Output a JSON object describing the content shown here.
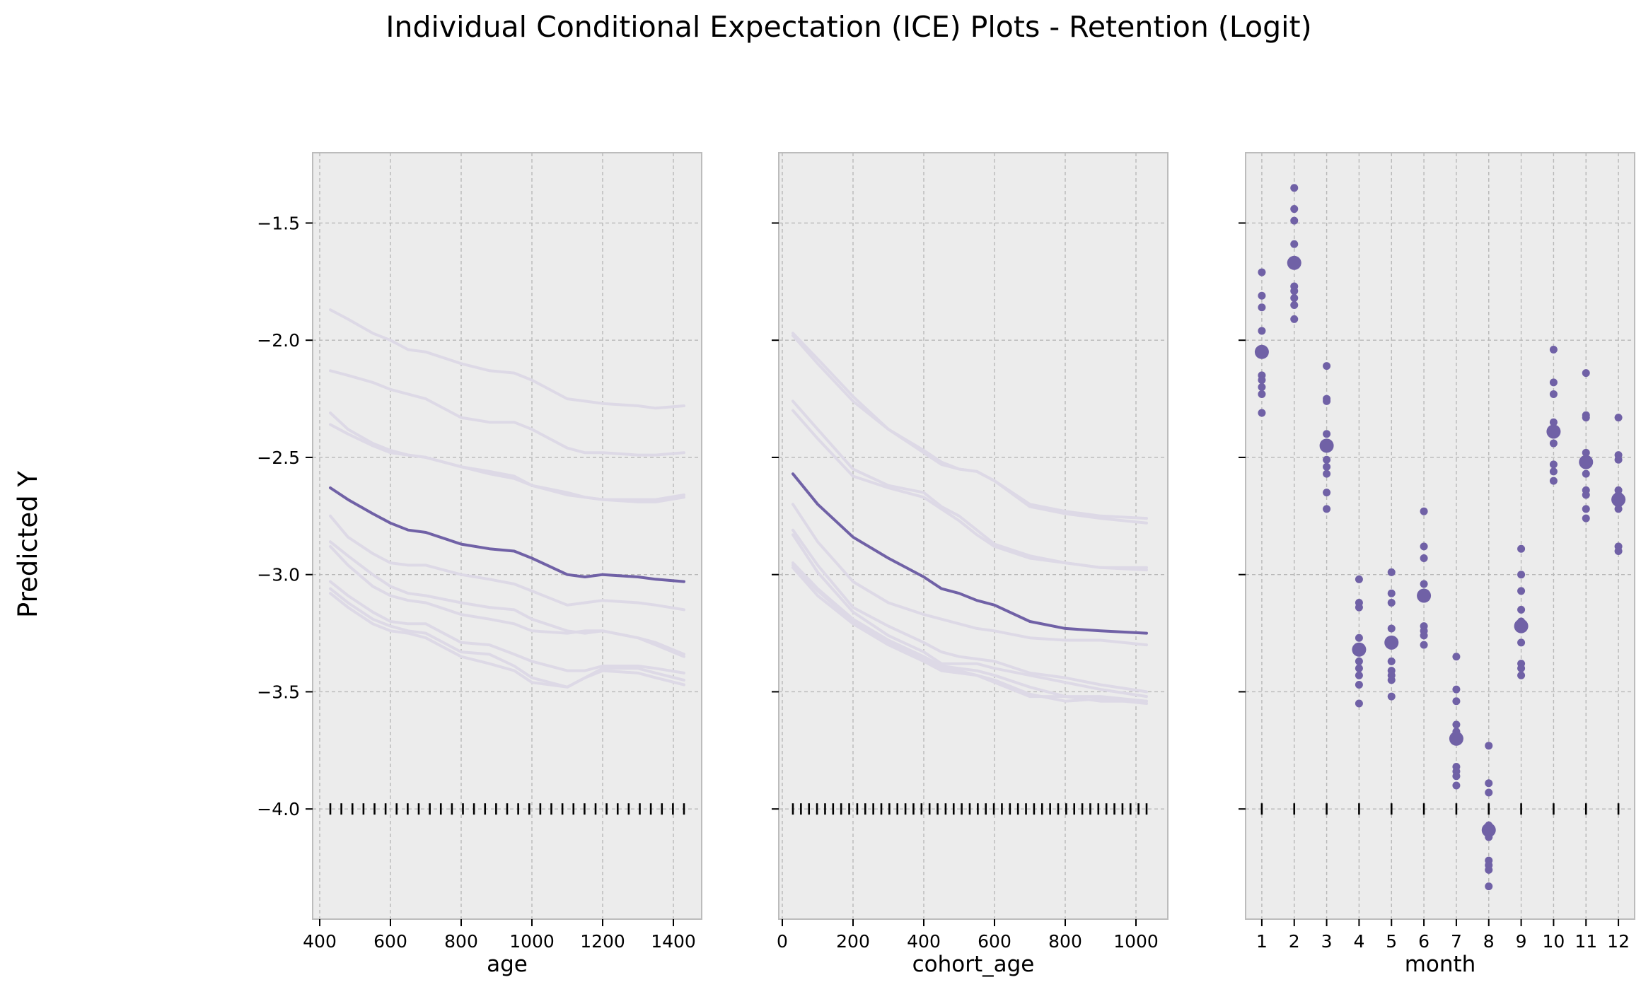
{
  "figure": {
    "title": "Individual Conditional Expectation (ICE) Plots - Retention (Logit)",
    "ylabel": "Predicted Y"
  },
  "colors": {
    "main": "#7061a6",
    "ice": "#ddd9e6",
    "panel_bg": "#ececec",
    "grid": "#b8b8b8",
    "rug": "#000000"
  },
  "chart_data": [
    {
      "type": "line",
      "xlabel": "age",
      "ylabel": "Predicted Y",
      "xlim": [
        380,
        1480
      ],
      "ylim": [
        -4.47,
        -1.2
      ],
      "xticks": [
        400,
        600,
        800,
        1000,
        1200,
        1400
      ],
      "yticks": [
        -1.5,
        -2.0,
        -2.5,
        -3.0,
        -3.5,
        -4.0
      ],
      "x": [
        430,
        480,
        550,
        600,
        650,
        700,
        800,
        880,
        950,
        1000,
        1100,
        1150,
        1200,
        1300,
        1350,
        1430
      ],
      "mean_line": [
        -2.63,
        -2.68,
        -2.74,
        -2.78,
        -2.81,
        -2.82,
        -2.87,
        -2.89,
        -2.9,
        -2.93,
        -3.0,
        -3.01,
        -3.0,
        -3.01,
        -3.02,
        -3.03
      ],
      "ice_lines": [
        [
          -1.87,
          -1.91,
          -1.97,
          -2.0,
          -2.04,
          -2.05,
          -2.1,
          -2.13,
          -2.14,
          -2.17,
          -2.25,
          -2.26,
          -2.27,
          -2.28,
          -2.29,
          -2.28
        ],
        [
          -2.13,
          -2.15,
          -2.18,
          -2.21,
          -2.23,
          -2.25,
          -2.33,
          -2.35,
          -2.35,
          -2.38,
          -2.46,
          -2.48,
          -2.48,
          -2.49,
          -2.49,
          -2.48
        ],
        [
          -2.31,
          -2.38,
          -2.44,
          -2.47,
          -2.49,
          -2.5,
          -2.54,
          -2.57,
          -2.59,
          -2.62,
          -2.65,
          -2.67,
          -2.68,
          -2.69,
          -2.69,
          -2.67
        ],
        [
          -2.36,
          -2.4,
          -2.45,
          -2.48,
          -2.49,
          -2.5,
          -2.54,
          -2.56,
          -2.58,
          -2.62,
          -2.66,
          -2.67,
          -2.68,
          -2.68,
          -2.68,
          -2.66
        ],
        [
          -2.75,
          -2.84,
          -2.91,
          -2.95,
          -2.96,
          -2.96,
          -3.0,
          -3.02,
          -3.04,
          -3.07,
          -3.13,
          -3.12,
          -3.11,
          -3.12,
          -3.13,
          -3.15
        ],
        [
          -2.86,
          -2.92,
          -3.0,
          -3.05,
          -3.08,
          -3.09,
          -3.12,
          -3.14,
          -3.15,
          -3.19,
          -3.24,
          -3.25,
          -3.24,
          -3.27,
          -3.29,
          -3.34
        ],
        [
          -2.88,
          -2.96,
          -3.05,
          -3.09,
          -3.11,
          -3.12,
          -3.17,
          -3.19,
          -3.21,
          -3.24,
          -3.25,
          -3.24,
          -3.24,
          -3.27,
          -3.3,
          -3.35
        ],
        [
          -3.03,
          -3.09,
          -3.16,
          -3.2,
          -3.21,
          -3.21,
          -3.29,
          -3.3,
          -3.34,
          -3.37,
          -3.41,
          -3.41,
          -3.39,
          -3.39,
          -3.4,
          -3.42
        ],
        [
          -3.06,
          -3.12,
          -3.19,
          -3.22,
          -3.24,
          -3.25,
          -3.33,
          -3.34,
          -3.39,
          -3.44,
          -3.48,
          -3.44,
          -3.4,
          -3.4,
          -3.42,
          -3.45
        ],
        [
          -3.08,
          -3.14,
          -3.21,
          -3.24,
          -3.25,
          -3.27,
          -3.35,
          -3.38,
          -3.41,
          -3.46,
          -3.48,
          -3.44,
          -3.41,
          -3.42,
          -3.44,
          -3.47
        ]
      ],
      "rug_y": -4.0,
      "rug_count": 33
    },
    {
      "type": "line",
      "xlabel": "cohort_age",
      "ylabel": "Predicted Y",
      "xlim": [
        -10,
        1090
      ],
      "ylim": [
        -4.47,
        -1.2
      ],
      "xticks": [
        0,
        200,
        400,
        600,
        800,
        1000
      ],
      "yticks": [
        -1.5,
        -2.0,
        -2.5,
        -3.0,
        -3.5,
        -4.0
      ],
      "x": [
        30,
        100,
        200,
        300,
        400,
        450,
        500,
        550,
        600,
        700,
        800,
        900,
        1030
      ],
      "mean_line": [
        -2.57,
        -2.7,
        -2.84,
        -2.93,
        -3.01,
        -3.06,
        -3.08,
        -3.11,
        -3.13,
        -3.2,
        -3.23,
        -3.24,
        -3.25
      ],
      "ice_lines": [
        [
          -1.97,
          -2.08,
          -2.24,
          -2.38,
          -2.48,
          -2.53,
          -2.55,
          -2.56,
          -2.6,
          -2.7,
          -2.73,
          -2.75,
          -2.76
        ],
        [
          -1.98,
          -2.1,
          -2.26,
          -2.38,
          -2.47,
          -2.52,
          -2.55,
          -2.56,
          -2.6,
          -2.71,
          -2.74,
          -2.76,
          -2.78
        ],
        [
          -2.26,
          -2.38,
          -2.55,
          -2.62,
          -2.65,
          -2.71,
          -2.75,
          -2.81,
          -2.87,
          -2.92,
          -2.95,
          -2.97,
          -2.98
        ],
        [
          -2.3,
          -2.42,
          -2.58,
          -2.63,
          -2.67,
          -2.72,
          -2.77,
          -2.83,
          -2.88,
          -2.93,
          -2.95,
          -2.97,
          -2.97
        ],
        [
          -2.7,
          -2.86,
          -3.03,
          -3.12,
          -3.17,
          -3.19,
          -3.21,
          -3.23,
          -3.24,
          -3.27,
          -3.28,
          -3.28,
          -3.3
        ],
        [
          -2.81,
          -2.96,
          -3.14,
          -3.22,
          -3.29,
          -3.33,
          -3.35,
          -3.36,
          -3.37,
          -3.42,
          -3.44,
          -3.47,
          -3.5
        ],
        [
          -2.83,
          -2.99,
          -3.16,
          -3.26,
          -3.33,
          -3.38,
          -3.38,
          -3.38,
          -3.4,
          -3.43,
          -3.46,
          -3.49,
          -3.52
        ],
        [
          -2.95,
          -3.06,
          -3.19,
          -3.28,
          -3.35,
          -3.39,
          -3.4,
          -3.41,
          -3.43,
          -3.48,
          -3.52,
          -3.54,
          -3.54
        ],
        [
          -2.96,
          -3.07,
          -3.2,
          -3.29,
          -3.36,
          -3.4,
          -3.41,
          -3.43,
          -3.45,
          -3.51,
          -3.54,
          -3.53,
          -3.55
        ],
        [
          -2.97,
          -3.09,
          -3.21,
          -3.3,
          -3.37,
          -3.41,
          -3.42,
          -3.43,
          -3.46,
          -3.52,
          -3.52,
          -3.52,
          -3.54
        ]
      ],
      "rug_y": -4.0,
      "rug_count": 45
    },
    {
      "type": "scatter",
      "xlabel": "month",
      "ylabel": "Predicted Y",
      "xlim": [
        0.5,
        12.5
      ],
      "ylim": [
        -4.47,
        -1.2
      ],
      "xticks": [
        1,
        2,
        3,
        4,
        5,
        6,
        7,
        8,
        9,
        10,
        11,
        12
      ],
      "yticks": [
        -1.5,
        -2.0,
        -2.5,
        -3.0,
        -3.5,
        -4.0
      ],
      "months": [
        1,
        2,
        3,
        4,
        5,
        6,
        7,
        8,
        9,
        10,
        11,
        12
      ],
      "mean_points": [
        -2.05,
        -1.67,
        -2.45,
        -3.32,
        -3.29,
        -3.09,
        -3.7,
        -4.09,
        -3.22,
        -2.39,
        -2.52,
        -2.68
      ],
      "ice_points": [
        [
          -1.71,
          -1.81,
          -1.86,
          -1.96,
          -2.15,
          -2.17,
          -2.2,
          -2.23,
          -2.31
        ],
        [
          -1.35,
          -1.44,
          -1.49,
          -1.59,
          -1.77,
          -1.79,
          -1.82,
          -1.85,
          -1.91
        ],
        [
          -2.11,
          -2.25,
          -2.26,
          -2.4,
          -2.51,
          -2.54,
          -2.57,
          -2.65,
          -2.72
        ],
        [
          -3.02,
          -3.12,
          -3.14,
          -3.27,
          -3.37,
          -3.4,
          -3.43,
          -3.47,
          -3.55
        ],
        [
          -2.99,
          -3.08,
          -3.12,
          -3.23,
          -3.37,
          -3.41,
          -3.43,
          -3.45,
          -3.52
        ],
        [
          -2.73,
          -2.88,
          -2.93,
          -3.04,
          -3.22,
          -3.24,
          -3.26,
          -3.3,
          -3.1
        ],
        [
          -3.35,
          -3.49,
          -3.54,
          -3.64,
          -3.82,
          -3.84,
          -3.86,
          -3.9,
          -3.67
        ],
        [
          -3.73,
          -3.89,
          -3.93,
          -4.07,
          -4.22,
          -4.24,
          -4.26,
          -4.33,
          -4.12
        ],
        [
          -2.89,
          -3.0,
          -3.07,
          -3.15,
          -3.29,
          -3.38,
          -3.4,
          -3.43,
          -3.2
        ],
        [
          -2.04,
          -2.18,
          -2.23,
          -2.35,
          -2.44,
          -2.53,
          -2.56,
          -2.6,
          -2.38
        ],
        [
          -2.14,
          -2.32,
          -2.33,
          -2.48,
          -2.57,
          -2.64,
          -2.66,
          -2.72,
          -2.76
        ],
        [
          -2.33,
          -2.49,
          -2.51,
          -2.64,
          -2.66,
          -2.72,
          -2.88,
          -2.9,
          -2.7
        ]
      ],
      "rug_y": -4.0
    }
  ]
}
